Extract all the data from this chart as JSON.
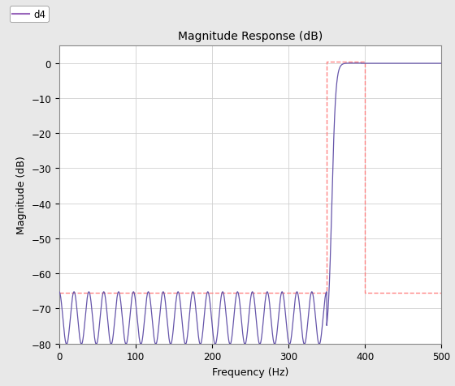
{
  "title": "Magnitude Response (dB)",
  "xlabel": "Frequency (Hz)",
  "ylabel": "Magnitude (dB)",
  "xlim": [
    0,
    500
  ],
  "ylim": [
    -80,
    5
  ],
  "yticks": [
    0,
    -10,
    -20,
    -30,
    -40,
    -50,
    -60,
    -70,
    -80
  ],
  "xticks": [
    0,
    100,
    200,
    300,
    400,
    500
  ],
  "line_color": "#6655AA",
  "dashed_color": "#FF7777",
  "legend_label": "d4",
  "legend_line_color": "#9966BB",
  "fs": 1000,
  "cutoff": 350,
  "passband_start": 395,
  "stopband_level": -65.5,
  "num_lobes": 18,
  "ripple_amp": 7.5,
  "background_color": "#e8e8e8",
  "axes_bg": "#ffffff",
  "title_fontsize": 10,
  "label_fontsize": 9,
  "tick_fontsize": 8.5
}
